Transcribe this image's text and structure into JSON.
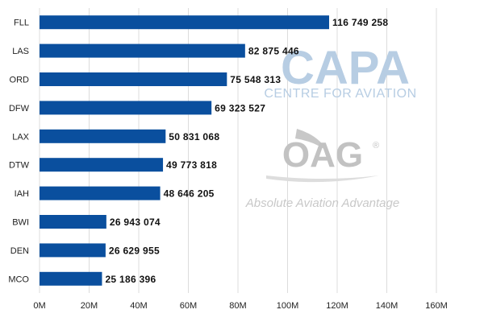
{
  "chart_data": {
    "type": "bar",
    "orientation": "horizontal",
    "categories": [
      "FLL",
      "LAS",
      "ORD",
      "DFW",
      "LAX",
      "DTW",
      "IAH",
      "BWI",
      "DEN",
      "MCO"
    ],
    "values": [
      116749258,
      82875446,
      75548313,
      69323527,
      50831068,
      49773818,
      48646205,
      26943074,
      26629955,
      25186396
    ],
    "value_labels": [
      "116 749 258",
      "82 875 446",
      "75 548 313",
      "69 323 527",
      "50 831 068",
      "49 773 818",
      "48 646 205",
      "26 943 074",
      "26 629 955",
      "25 186 396"
    ],
    "xlim": [
      0,
      160000000
    ],
    "x_ticks": [
      0,
      20000000,
      40000000,
      60000000,
      80000000,
      100000000,
      120000000,
      140000000,
      160000000
    ],
    "x_tick_labels": [
      "0M",
      "20M",
      "40M",
      "60M",
      "80M",
      "100M",
      "120M",
      "140M",
      "160M"
    ],
    "title": "",
    "xlabel": "",
    "ylabel": "",
    "grid": "vertical",
    "bar_color": "#0a4f9e",
    "grid_color": "#dcdcdc"
  },
  "watermarks": {
    "capa": {
      "name": "CAPA",
      "tagline": "CENTRE FOR AVIATION",
      "color": "#b7cde3"
    },
    "oag": {
      "name": "OAG",
      "symbol": "®",
      "tagline": "Absolute Aviation Advantage",
      "color": "#c2c2c2"
    }
  }
}
